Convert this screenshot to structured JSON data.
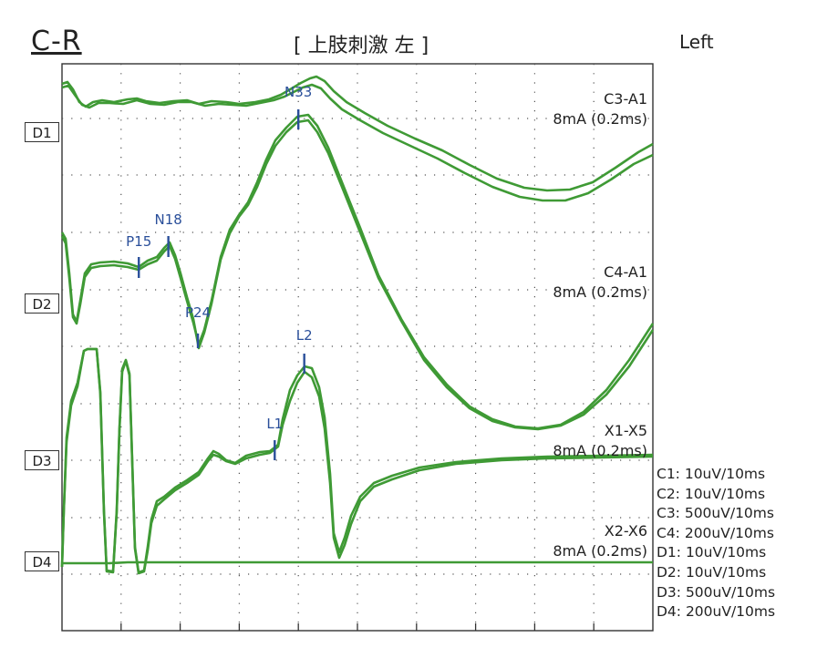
{
  "header": {
    "title": "C-R",
    "center_label": "[ 上肢刺激  左     ]",
    "side_label": "Left"
  },
  "channels": [
    {
      "box": "D1",
      "label": "C3-A1",
      "stim": "8mA (0.2ms)"
    },
    {
      "box": "D2",
      "label": "C4-A1",
      "stim": "8mA (0.2ms)"
    },
    {
      "box": "D3",
      "label": "X1-X5",
      "stim": "8mA (0.2ms)"
    },
    {
      "box": "D4",
      "label": "X2-X6",
      "stim": "8mA (0.2ms)"
    }
  ],
  "scales": [
    "C1: 10uV/10ms",
    "C2: 10uV/10ms",
    "C3: 500uV/10ms",
    "C4: 200uV/10ms",
    "D1: 10uV/10ms",
    "D2: 10uV/10ms",
    "D3: 500uV/10ms",
    "D4: 200uV/10ms"
  ],
  "chart_data": {
    "type": "line",
    "xlim": [
      0,
      100
    ],
    "x_unit": "ms",
    "grid": true,
    "colors": {
      "trace": "#3f9a35",
      "marker": "#2a4f9a",
      "marker_text": "#2a4f9a",
      "grid": "#555555"
    },
    "markers": [
      {
        "name": "N33",
        "t": 40,
        "channel": "D1"
      },
      {
        "name": "P15",
        "t": 13,
        "channel": "D2"
      },
      {
        "name": "N18",
        "t": 18,
        "channel": "D2"
      },
      {
        "name": "P24",
        "t": 23,
        "channel": "D2"
      },
      {
        "name": "L1",
        "t": 36,
        "channel": "D3"
      },
      {
        "name": "L2",
        "t": 41,
        "channel": "D3"
      }
    ]
  }
}
